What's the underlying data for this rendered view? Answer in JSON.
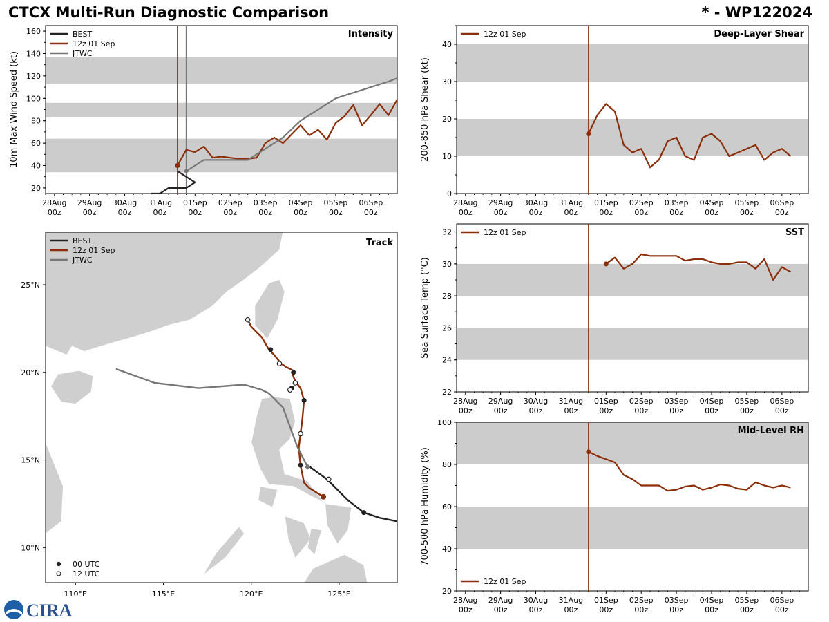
{
  "header": {
    "title": "CTCX Multi-Run Diagnostic Comparison",
    "storm_id": "* - WP122024"
  },
  "colors": {
    "best": "#222222",
    "run": "#8b2e0a",
    "jtwc": "#777777",
    "band": "#cccccc",
    "land": "#cfcfcf"
  },
  "time_axis": {
    "ticks": [
      "28Aug\n00z",
      "29Aug\n00z",
      "30Aug\n00z",
      "31Aug\n00z",
      "01Sep\n00z",
      "02Sep\n00z",
      "03Sep\n00z",
      "04Sep\n00z",
      "05Sep\n00z",
      "06Sep\n00z"
    ],
    "start_day": 27.75,
    "end_day": 37.75,
    "init_day": 31.5
  },
  "chart_data": [
    {
      "id": "intensity",
      "type": "line",
      "panel_label": "Intensity",
      "ylabel": "10m Max Wind Speed (kt)",
      "ylim": [
        15,
        165
      ],
      "yticks": [
        20,
        40,
        60,
        80,
        100,
        120,
        140,
        160
      ],
      "bands": [
        [
          34,
          64
        ],
        [
          83,
          96
        ],
        [
          113,
          137
        ]
      ],
      "legend": [
        "BEST",
        "12z 01 Sep",
        "JTWC"
      ],
      "init_marker_day": 31.5,
      "jtwc_marker_day": 31.75,
      "series": [
        {
          "name": "BEST",
          "color_key": "best",
          "x": [
            30.75,
            31.0,
            31.25,
            31.5,
            31.75,
            32.0,
            31.5
          ],
          "y": [
            15,
            15,
            20,
            20,
            20,
            25,
            35
          ]
        },
        {
          "name": "12z 01 Sep",
          "color_key": "run",
          "x": [
            31.5,
            31.75,
            32.0,
            32.25,
            32.5,
            32.75,
            33.0,
            33.25,
            33.5,
            33.75,
            34.0,
            34.25,
            34.5,
            34.75,
            35.0,
            35.25,
            35.5,
            35.75,
            36.0,
            36.25,
            36.5,
            36.75,
            37.0,
            37.25,
            37.5,
            37.75
          ],
          "y": [
            40,
            54,
            52,
            57,
            47,
            48,
            47,
            46,
            46,
            47,
            60,
            65,
            60,
            68,
            76,
            67,
            72,
            63,
            78,
            84,
            94,
            76,
            85,
            95,
            85,
            99
          ]
        },
        {
          "name": "JTWC",
          "color_key": "jtwc",
          "x": [
            31.75,
            32.0,
            32.25,
            32.5,
            33.0,
            33.5,
            34.0,
            34.5,
            35.0,
            35.5,
            36.0,
            36.5,
            37.0,
            37.5,
            37.75
          ],
          "y": [
            35,
            40,
            45,
            45,
            45,
            45,
            55,
            65,
            80,
            90,
            100,
            105,
            110,
            115,
            118
          ]
        }
      ]
    },
    {
      "id": "shear",
      "type": "line",
      "panel_label": "Deep-Layer Shear",
      "ylabel": "200-850 hPa Shear (kt)",
      "ylim": [
        0,
        45
      ],
      "yticks": [
        0,
        10,
        20,
        30,
        40
      ],
      "bands": [
        [
          10,
          20
        ],
        [
          30,
          40
        ]
      ],
      "legend": [
        "12z 01 Sep"
      ],
      "series": [
        {
          "name": "12z 01 Sep",
          "color_key": "run",
          "x": [
            31.5,
            31.75,
            32.0,
            32.25,
            32.5,
            32.75,
            33.0,
            33.25,
            33.5,
            33.75,
            34.0,
            34.25,
            34.5,
            34.75,
            35.0,
            35.25,
            35.5,
            35.75,
            36.0,
            36.25,
            36.5,
            36.75,
            37.0,
            37.25
          ],
          "y": [
            16,
            21,
            24,
            22,
            13,
            11,
            12,
            7,
            9,
            14,
            15,
            10,
            9,
            15,
            16,
            14,
            10,
            11,
            12,
            13,
            9,
            11,
            12,
            10
          ]
        }
      ]
    },
    {
      "id": "sst",
      "type": "line",
      "panel_label": "SST",
      "ylabel": "Sea Surface Temp (°C)",
      "ylim": [
        22,
        32.5
      ],
      "yticks": [
        22,
        24,
        26,
        28,
        30,
        32
      ],
      "bands": [
        [
          24,
          26
        ],
        [
          28,
          30
        ]
      ],
      "legend": [
        "12z 01 Sep"
      ],
      "series": [
        {
          "name": "12z 01 Sep",
          "color_key": "run",
          "x": [
            32.0,
            32.25,
            32.5,
            32.75,
            33.0,
            33.25,
            33.5,
            33.75,
            34.0,
            34.25,
            34.5,
            34.75,
            35.0,
            35.25,
            35.5,
            35.75,
            36.0,
            36.25,
            36.5,
            36.75,
            37.0,
            37.25
          ],
          "y": [
            30.0,
            30.4,
            29.7,
            30.0,
            30.6,
            30.5,
            30.5,
            30.5,
            30.5,
            30.2,
            30.3,
            30.3,
            30.1,
            30.0,
            30.0,
            30.1,
            30.1,
            29.7,
            30.3,
            29.0,
            29.8,
            29.5
          ]
        }
      ]
    },
    {
      "id": "rh",
      "type": "line",
      "panel_label": "Mid-Level RH",
      "ylabel": "700-500 hPa Humidity (%)",
      "ylim": [
        20,
        100
      ],
      "yticks": [
        20,
        40,
        60,
        80,
        100
      ],
      "bands": [
        [
          40,
          60
        ],
        [
          80,
          100
        ]
      ],
      "legend": [
        "12z 01 Sep"
      ],
      "series": [
        {
          "name": "12z 01 Sep",
          "color_key": "run",
          "x": [
            31.5,
            31.75,
            32.0,
            32.25,
            32.5,
            32.75,
            33.0,
            33.25,
            33.5,
            33.75,
            34.0,
            34.25,
            34.5,
            34.75,
            35.0,
            35.25,
            35.5,
            35.75,
            36.0,
            36.25,
            36.5,
            36.75,
            37.0,
            37.25
          ],
          "y": [
            86,
            84,
            82.5,
            81,
            75,
            73,
            70,
            70,
            70,
            67.5,
            68,
            69.5,
            70,
            68,
            69,
            70.5,
            70,
            68.5,
            68,
            71.5,
            70,
            69,
            70,
            69
          ]
        }
      ]
    },
    {
      "id": "track",
      "type": "scatter",
      "panel_label": "Track",
      "lon_range": [
        108.3,
        128.3
      ],
      "lat_range": [
        8.0,
        28.0
      ],
      "lon_ticks": [
        110,
        115,
        120,
        125
      ],
      "lon_labels": [
        "110°E",
        "115°E",
        "120°E",
        "125°E"
      ],
      "lat_ticks": [
        10,
        15,
        20,
        25
      ],
      "lat_labels": [
        "10°N",
        "15°N",
        "20°N",
        "25°N"
      ],
      "legend": [
        "BEST",
        "12z 01 Sep",
        "JTWC"
      ],
      "marker_legend": [
        "00 UTC",
        "12 UTC"
      ],
      "series": [
        {
          "name": "BEST",
          "color_key": "best",
          "lon": [
            128.3,
            127.3,
            126.4,
            125.5,
            124.3,
            123.2
          ],
          "lat": [
            11.5,
            11.7,
            12.0,
            12.7,
            13.9,
            14.7
          ]
        },
        {
          "name": "12z 01 Sep",
          "color_key": "run",
          "lon": [
            124.1,
            123.3,
            123.0,
            122.8,
            122.7,
            122.8,
            122.9,
            123.0,
            122.8,
            122.5,
            122.3,
            122.4,
            122.0,
            121.7,
            121.3,
            121.0,
            120.6,
            120.0,
            119.8
          ],
          "lat": [
            12.9,
            13.4,
            13.7,
            14.7,
            15.7,
            16.5,
            17.3,
            18.4,
            19.1,
            19.5,
            20.0,
            20.1,
            20.3,
            20.5,
            21.0,
            21.3,
            22.0,
            22.6,
            23.0
          ]
        },
        {
          "name": "JTWC",
          "color_key": "jtwc",
          "lon": [
            123.2,
            122.6,
            121.8,
            121.0,
            120.6,
            119.6,
            117.0,
            114.5,
            112.3
          ],
          "lat": [
            14.6,
            15.8,
            18.0,
            18.8,
            19.0,
            19.3,
            19.1,
            19.4,
            20.2
          ]
        }
      ],
      "filled_markers": [
        [
          126.4,
          12.0
        ],
        [
          122.8,
          14.7
        ],
        [
          123.0,
          18.4
        ],
        [
          122.4,
          20.0
        ],
        [
          121.1,
          21.3
        ],
        [
          122.3,
          19.1
        ]
      ],
      "open_markers": [
        [
          124.4,
          13.9
        ],
        [
          122.8,
          16.5
        ],
        [
          122.5,
          19.4
        ],
        [
          121.6,
          20.5
        ],
        [
          119.8,
          23.0
        ],
        [
          122.2,
          19.0
        ]
      ],
      "run_start_marker": [
        124.1,
        12.9
      ],
      "jtwc_start_marker": [
        123.2,
        14.6
      ]
    }
  ],
  "footer": {
    "logo_text": "CIRA"
  }
}
